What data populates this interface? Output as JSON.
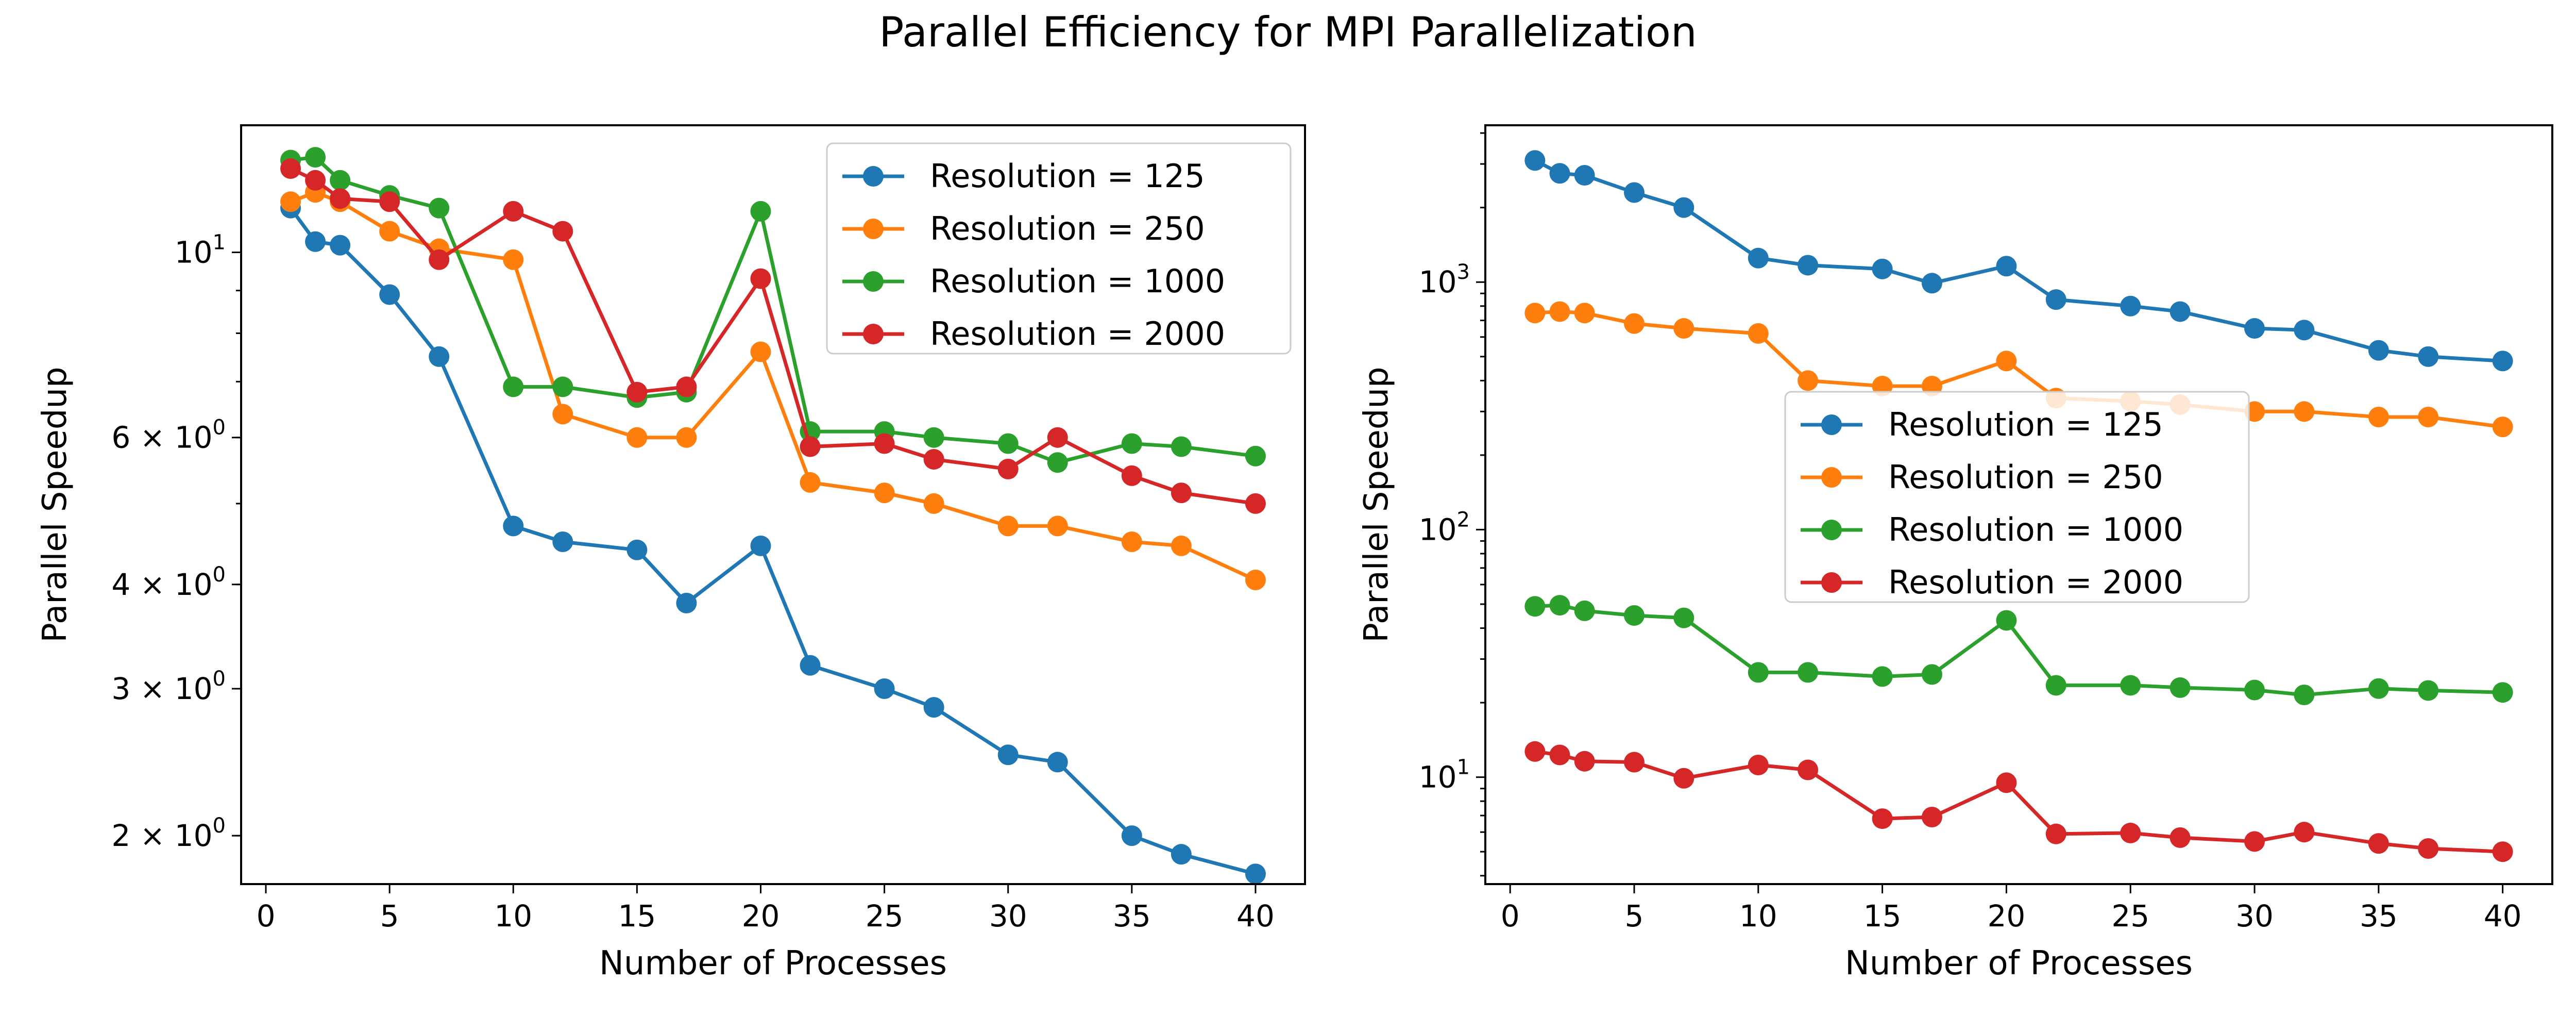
{
  "figure": {
    "title": "Parallel Efficiency for MPI Parallelization"
  },
  "chart_data": [
    {
      "type": "line",
      "title": "",
      "xlabel": "Number of Processes",
      "ylabel": "Parallel Speedup",
      "yscale": "log",
      "xlim": [
        -1,
        42
      ],
      "ylim": [
        1.75,
        14.2
      ],
      "xticks": [
        0,
        5,
        10,
        15,
        20,
        25,
        30,
        35,
        40
      ],
      "yticks": [
        {
          "value": 2,
          "mantissa": "2",
          "exp": "0"
        },
        {
          "value": 3,
          "mantissa": "3",
          "exp": "0"
        },
        {
          "value": 4,
          "mantissa": "4",
          "exp": "0"
        },
        {
          "value": 6,
          "mantissa": "6",
          "exp": "0"
        },
        {
          "value": 10,
          "mantissa": "",
          "exp": "1"
        }
      ],
      "legend_position": "upper right",
      "grid": false,
      "x": [
        1,
        2,
        3,
        5,
        7,
        10,
        12,
        15,
        17,
        20,
        22,
        25,
        27,
        30,
        32,
        35,
        37,
        40
      ],
      "series": [
        {
          "name": "Resolution = 125",
          "color": "#1f77b4",
          "values": [
            11.3,
            10.3,
            10.2,
            8.9,
            7.5,
            4.7,
            4.5,
            4.4,
            3.8,
            4.45,
            3.2,
            3.0,
            2.85,
            2.5,
            2.45,
            2.0,
            1.9,
            1.8
          ]
        },
        {
          "name": "Resolution = 250",
          "color": "#ff7f0e",
          "values": [
            11.5,
            11.8,
            11.5,
            10.6,
            10.1,
            9.8,
            6.4,
            6.0,
            6.0,
            7.6,
            5.3,
            5.15,
            5.0,
            4.7,
            4.7,
            4.5,
            4.45,
            4.05
          ]
        },
        {
          "name": "Resolution = 1000",
          "color": "#2ca02c",
          "values": [
            12.9,
            13.0,
            12.2,
            11.7,
            11.3,
            6.9,
            6.9,
            6.7,
            6.8,
            11.2,
            6.1,
            6.1,
            6.0,
            5.9,
            5.6,
            5.9,
            5.85,
            5.7
          ]
        },
        {
          "name": "Resolution = 2000",
          "color": "#d62728",
          "values": [
            12.6,
            12.2,
            11.6,
            11.5,
            9.8,
            11.2,
            10.6,
            6.8,
            6.9,
            9.3,
            5.85,
            5.9,
            5.65,
            5.5,
            6.0,
            5.4,
            5.15,
            5.0
          ]
        }
      ]
    },
    {
      "type": "line",
      "title": "",
      "xlabel": "Number of Processes",
      "ylabel": "Parallel Speedup",
      "yscale": "log",
      "xlim": [
        -1,
        42
      ],
      "ylim": [
        3.7,
        4300
      ],
      "xticks": [
        0,
        5,
        10,
        15,
        20,
        25,
        30,
        35,
        40
      ],
      "yticks": [
        {
          "value": 10,
          "mantissa": "",
          "exp": "1"
        },
        {
          "value": 100,
          "mantissa": "",
          "exp": "2"
        },
        {
          "value": 1000,
          "mantissa": "",
          "exp": "3"
        }
      ],
      "legend_position": "center right",
      "grid": false,
      "x": [
        1,
        2,
        3,
        5,
        7,
        10,
        12,
        15,
        17,
        20,
        22,
        25,
        27,
        30,
        32,
        35,
        37,
        40
      ],
      "series": [
        {
          "name": "Resolution = 125",
          "color": "#1f77b4",
          "values": [
            3100,
            2750,
            2700,
            2300,
            2000,
            1250,
            1170,
            1130,
            990,
            1160,
            850,
            800,
            760,
            650,
            640,
            530,
            500,
            480
          ]
        },
        {
          "name": "Resolution = 250",
          "color": "#ff7f0e",
          "values": [
            750,
            760,
            750,
            680,
            650,
            620,
            400,
            380,
            380,
            480,
            340,
            330,
            320,
            300,
            300,
            285,
            285,
            260
          ]
        },
        {
          "name": "Resolution = 1000",
          "color": "#2ca02c",
          "values": [
            49,
            49.5,
            47,
            45,
            44,
            26.5,
            26.5,
            25.5,
            26,
            43,
            23.5,
            23.5,
            23,
            22.5,
            21.5,
            22.8,
            22.4,
            22
          ]
        },
        {
          "name": "Resolution = 2000",
          "color": "#d62728",
          "values": [
            12.7,
            12.3,
            11.6,
            11.5,
            9.9,
            11.2,
            10.7,
            6.8,
            6.9,
            9.5,
            5.9,
            5.95,
            5.7,
            5.5,
            6.0,
            5.4,
            5.15,
            5.0
          ]
        }
      ]
    }
  ]
}
